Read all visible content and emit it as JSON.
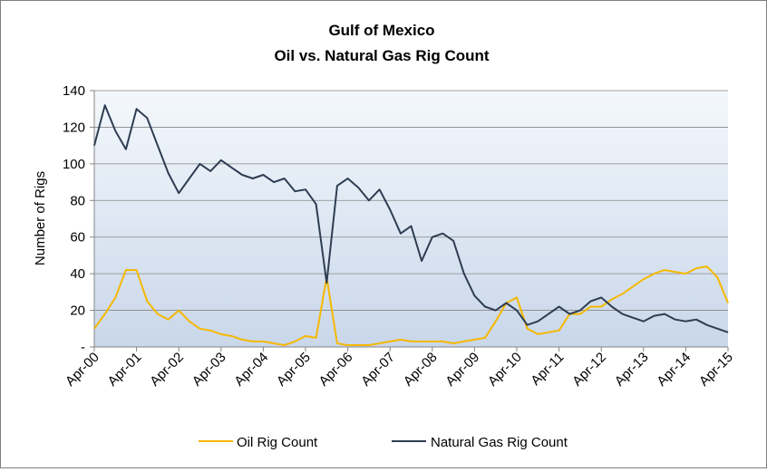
{
  "chart_data": {
    "type": "line",
    "title": "Gulf of Mexico",
    "subtitle": "Oil vs. Natural Gas Rig Count",
    "xlabel": "",
    "ylabel": "Number of Rigs",
    "ylim": [
      0,
      140
    ],
    "y_tick_labels": [
      "-",
      "20",
      "40",
      "60",
      "80",
      "100",
      "120",
      "140"
    ],
    "x_tick_labels": [
      "Apr-00",
      "Apr-01",
      "Apr-02",
      "Apr-03",
      "Apr-04",
      "Apr-05",
      "Apr-06",
      "Apr-07",
      "Apr-08",
      "Apr-09",
      "Apr-10",
      "Apr-11",
      "Apr-12",
      "Apr-13",
      "Apr-14",
      "Apr-15"
    ],
    "grid": true,
    "legend_position": "bottom",
    "x": [
      "Apr-00",
      "Jul-00",
      "Oct-00",
      "Jan-01",
      "Apr-01",
      "Jul-01",
      "Oct-01",
      "Jan-02",
      "Apr-02",
      "Jul-02",
      "Oct-02",
      "Jan-03",
      "Apr-03",
      "Jul-03",
      "Oct-03",
      "Jan-04",
      "Apr-04",
      "Jul-04",
      "Oct-04",
      "Jan-05",
      "Apr-05",
      "Jul-05",
      "Oct-05",
      "Jan-06",
      "Apr-06",
      "Jul-06",
      "Oct-06",
      "Jan-07",
      "Apr-07",
      "Jul-07",
      "Oct-07",
      "Jan-08",
      "Apr-08",
      "Jul-08",
      "Oct-08",
      "Jan-09",
      "Apr-09",
      "Jul-09",
      "Oct-09",
      "Jan-10",
      "Apr-10",
      "Jul-10",
      "Oct-10",
      "Jan-11",
      "Apr-11",
      "Jul-11",
      "Oct-11",
      "Jan-12",
      "Apr-12",
      "Jul-12",
      "Oct-12",
      "Jan-13",
      "Apr-13",
      "Jul-13",
      "Oct-13",
      "Jan-14",
      "Apr-14",
      "Jul-14",
      "Oct-14",
      "Jan-15",
      "Apr-15"
    ],
    "series": [
      {
        "name": "Oil Rig Count",
        "color": "#f5b800",
        "values": [
          10,
          18,
          27,
          42,
          42,
          25,
          18,
          15,
          20,
          14,
          10,
          9,
          7,
          6,
          4,
          3,
          3,
          2,
          1,
          3,
          6,
          5,
          38,
          2,
          1,
          1,
          1,
          2,
          3,
          4,
          3,
          3,
          3,
          3,
          2,
          3,
          4,
          5,
          14,
          24,
          27,
          10,
          7,
          8,
          9,
          18,
          18,
          22,
          22,
          26,
          29,
          33,
          37,
          40,
          42,
          41,
          40,
          43,
          44,
          38,
          24
        ],
        "unit": "rigs"
      },
      {
        "name": "Natural Gas Rig Count",
        "color": "#2e3d52",
        "values": [
          110,
          132,
          118,
          108,
          130,
          125,
          110,
          95,
          84,
          92,
          100,
          96,
          102,
          98,
          94,
          92,
          94,
          90,
          92,
          85,
          86,
          78,
          35,
          88,
          92,
          87,
          80,
          86,
          75,
          62,
          66,
          47,
          60,
          62,
          58,
          40,
          28,
          22,
          20,
          24,
          20,
          12,
          14,
          18,
          22,
          18,
          20,
          25,
          27,
          22,
          18,
          16,
          14,
          17,
          18,
          15,
          14,
          15,
          12,
          10,
          8
        ],
        "unit": "rigs"
      }
    ]
  }
}
